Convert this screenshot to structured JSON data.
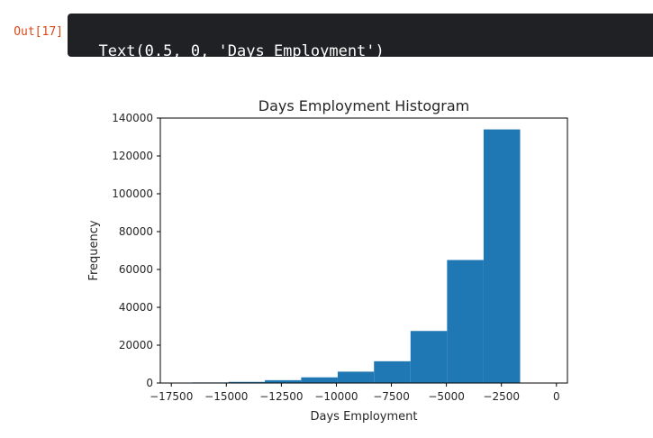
{
  "cell": {
    "prompt": "Out[17]",
    "output_text": "Text(0.5, 0, 'Days Employment')"
  },
  "chart_data": {
    "type": "bar",
    "title": "Days Employment Histogram",
    "xlabel": "Days Employment",
    "ylabel": "Frequency",
    "bar_color": "#1f77b4",
    "xlim": [
      -18000,
      500
    ],
    "ylim": [
      0,
      140000
    ],
    "bins": [
      {
        "x0": -16550,
        "x1": -14900,
        "count": 300
      },
      {
        "x0": -14900,
        "x1": -13250,
        "count": 600
      },
      {
        "x0": -13250,
        "x1": -11600,
        "count": 1500
      },
      {
        "x0": -11600,
        "x1": -9940,
        "count": 3000
      },
      {
        "x0": -9940,
        "x1": -8290,
        "count": 6000
      },
      {
        "x0": -8290,
        "x1": -6630,
        "count": 11500
      },
      {
        "x0": -6630,
        "x1": -4970,
        "count": 27500
      },
      {
        "x0": -4970,
        "x1": -3310,
        "count": 65000
      },
      {
        "x0": -3310,
        "x1": -1650,
        "count": 134000
      }
    ],
    "xticks": [
      {
        "value": -17500,
        "label": "−17500"
      },
      {
        "value": -15000,
        "label": "−15000"
      },
      {
        "value": -12500,
        "label": "−12500"
      },
      {
        "value": -10000,
        "label": "−10000"
      },
      {
        "value": -7500,
        "label": "−7500"
      },
      {
        "value": -5000,
        "label": "−5000"
      },
      {
        "value": -2500,
        "label": "−2500"
      },
      {
        "value": 0,
        "label": "0"
      }
    ],
    "yticks": [
      {
        "value": 0,
        "label": "0"
      },
      {
        "value": 20000,
        "label": "20000"
      },
      {
        "value": 40000,
        "label": "40000"
      },
      {
        "value": 60000,
        "label": "60000"
      },
      {
        "value": 80000,
        "label": "80000"
      },
      {
        "value": 100000,
        "label": "100000"
      },
      {
        "value": 120000,
        "label": "120000"
      },
      {
        "value": 140000,
        "label": "140000"
      }
    ],
    "grid": false,
    "legend": "none"
  }
}
